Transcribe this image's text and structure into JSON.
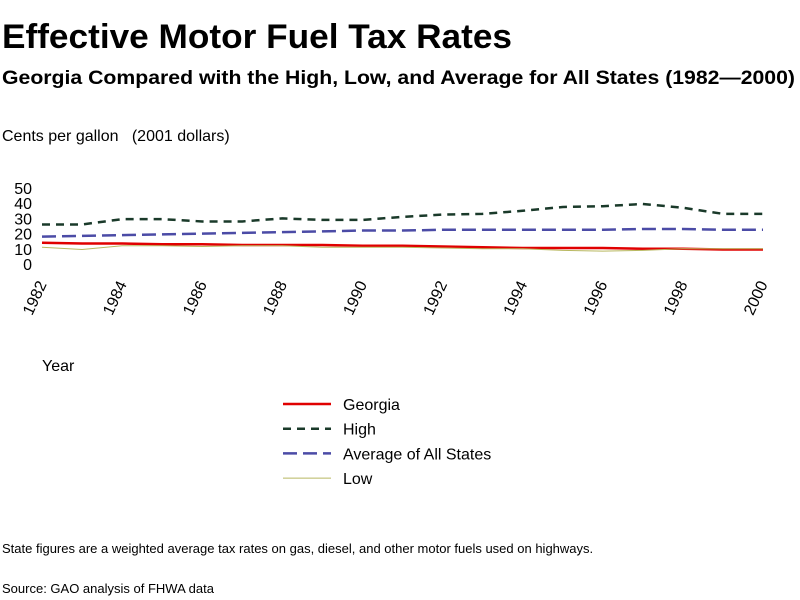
{
  "chart_data": {
    "type": "line",
    "title": "Effective Motor Fuel Tax Rates",
    "subtitle": "Georgia Compared with the High, Low, and Average for All States (1982—2000)",
    "ylabel": "Cents per gallon   (2001 dollars)",
    "xlabel": "Year",
    "x": [
      1982,
      1983,
      1984,
      1985,
      1986,
      1987,
      1988,
      1989,
      1990,
      1991,
      1992,
      1993,
      1994,
      1995,
      1996,
      1997,
      1998,
      1999,
      2000
    ],
    "series": [
      {
        "name": "Georgia",
        "color": "#e00000",
        "values": [
          14,
          13.5,
          13.5,
          13,
          13,
          12.5,
          12.5,
          12.5,
          12,
          12,
          11.5,
          11,
          10.5,
          10.5,
          10.5,
          10,
          10,
          9.5,
          9.5
        ]
      },
      {
        "name": "High",
        "color": "#1a3a2a",
        "values": [
          26,
          26,
          29.5,
          29.5,
          28,
          28,
          30,
          29,
          29,
          31,
          32.5,
          33,
          35,
          37.5,
          38,
          39.5,
          37,
          33,
          33
        ]
      },
      {
        "name": "Average of All States",
        "color": "#4b4ba6",
        "values": [
          18,
          18.5,
          19,
          19.5,
          20,
          20.5,
          21,
          21.5,
          22,
          22,
          22.5,
          22.5,
          22.5,
          22.5,
          22.5,
          23,
          23,
          22.5,
          22.5
        ]
      },
      {
        "name": "Low",
        "color": "#b8b860",
        "values": [
          11,
          9.5,
          12,
          12,
          11.5,
          12,
          12,
          11,
          11,
          11,
          10.5,
          10,
          10,
          9,
          8.5,
          9,
          10,
          10,
          10
        ]
      }
    ],
    "xlim": [
      1982,
      2000
    ],
    "xticks": [
      1982,
      1984,
      1986,
      1988,
      1990,
      1992,
      1994,
      1996,
      1998,
      2000
    ],
    "ylim": [
      0,
      50
    ],
    "yticks": [
      0,
      10,
      20,
      30,
      40,
      50
    ],
    "note": "State figures are a weighted average tax rates on gas, diesel, and other motor fuels used on highways.",
    "source": "Source: GAO analysis of FHWA data"
  }
}
